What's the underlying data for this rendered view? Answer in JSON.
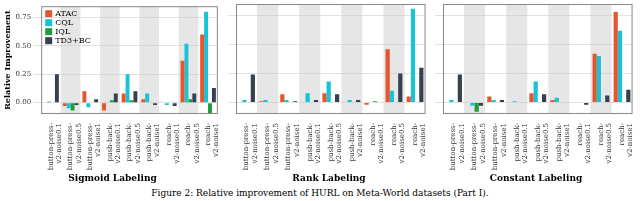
{
  "chart_data": [
    {
      "type": "bar",
      "title": "Sigmoid Labeling",
      "ylabel": "Relative Improvement",
      "categories": [
        "button-press-v2-noise0.1",
        "button-press-v2-noise0.5",
        "button-press-v2-noise1",
        "push-back-v2-noise0.1",
        "push-back-v2-noise0.5",
        "push-back-v2-noise1",
        "reach-v2-noise0.1",
        "reach-v2-noise0.5",
        "reach-v2-noise1"
      ],
      "series": [
        {
          "name": "ATAC",
          "color": "#e4572e",
          "values": [
            0.0,
            -0.03,
            0.1,
            -0.07,
            0.08,
            0.03,
            0.0,
            0.37,
            0.6
          ]
        },
        {
          "name": "CQL",
          "color": "#17c3d6",
          "values": [
            0.01,
            -0.05,
            -0.04,
            0.0,
            0.25,
            0.08,
            -0.02,
            0.52,
            0.8
          ]
        },
        {
          "name": "IQL",
          "color": "#1e9e3a",
          "values": [
            0.0,
            -0.07,
            0.0,
            0.02,
            0.02,
            0.0,
            0.0,
            0.03,
            -0.1
          ]
        },
        {
          "name": "TD3+BC",
          "color": "#37404f",
          "values": [
            0.25,
            -0.02,
            0.03,
            0.08,
            0.1,
            -0.02,
            -0.03,
            0.08,
            0.13
          ]
        }
      ],
      "ylim": [
        -0.1,
        0.85
      ],
      "yticks": [
        {
          "value": 0,
          "label": "0.00"
        },
        {
          "value": 0.25,
          "label": "0.25"
        },
        {
          "value": 0.5,
          "label": "0.50"
        },
        {
          "value": 0.75,
          "label": "0.75"
        }
      ],
      "grid": true,
      "legend": "top-left",
      "tick_labels": true
    },
    {
      "type": "bar",
      "title": "Rank Labeling",
      "categories": [
        "button-press-v2-noise0.1",
        "button-press-v2-noise0.5",
        "button-press-v2-noise1",
        "push-back-v2-noise0.1",
        "push-back-v2-noise0.5",
        "push-back-v2-noise1",
        "reach-v2-noise0.1",
        "reach-v2-noise0.5",
        "reach-v2-noise1"
      ],
      "series": [
        {
          "name": "ATAC",
          "color": "#e4572e",
          "values": [
            0.0,
            0.01,
            0.07,
            0.0,
            0.08,
            0.0,
            -0.02,
            0.46,
            0.05
          ]
        },
        {
          "name": "CQL",
          "color": "#17c3d6",
          "values": [
            0.02,
            0.02,
            0.02,
            0.08,
            0.18,
            0.02,
            0.0,
            0.1,
            0.81
          ]
        },
        {
          "name": "IQL",
          "color": "#1e9e3a",
          "values": [
            0.0,
            0.0,
            0.0,
            0.0,
            0.0,
            0.0,
            0.01,
            0.0,
            0.0
          ]
        },
        {
          "name": "TD3+BC",
          "color": "#37404f",
          "values": [
            0.24,
            0.0,
            0.01,
            0.02,
            0.07,
            0.02,
            0.0,
            0.25,
            0.3
          ]
        }
      ],
      "ylim": [
        -0.1,
        0.85
      ],
      "yticks": [
        {
          "value": 0,
          "label": "0.00"
        },
        {
          "value": 0.25,
          "label": "0.25"
        },
        {
          "value": 0.5,
          "label": "0.50"
        },
        {
          "value": 0.75,
          "label": "0.75"
        }
      ],
      "grid": true,
      "tick_labels": "x"
    },
    {
      "type": "bar",
      "title": "Constant Labeling",
      "categories": [
        "button-press-v2-noise0.1",
        "button-press-v2-noise0.5",
        "button-press-v2-noise1",
        "push-back-v2-noise0.1",
        "push-back-v2-noise0.5",
        "push-back-v2-noise1",
        "reach-v2-noise0.1",
        "reach-v2-noise0.5",
        "reach-v2-noise1"
      ],
      "series": [
        {
          "name": "ATAC",
          "color": "#e4572e",
          "values": [
            0.0,
            0.0,
            0.05,
            0.0,
            0.08,
            0.02,
            0.0,
            0.42,
            0.78
          ]
        },
        {
          "name": "CQL",
          "color": "#17c3d6",
          "values": [
            0.02,
            -0.03,
            0.02,
            0.01,
            0.18,
            0.04,
            0.0,
            0.4,
            0.62
          ]
        },
        {
          "name": "IQL",
          "color": "#1e9e3a",
          "values": [
            0.0,
            -0.08,
            0.0,
            0.0,
            0.0,
            0.0,
            0.0,
            0.0,
            0.0
          ]
        },
        {
          "name": "TD3+BC",
          "color": "#37404f",
          "values": [
            0.24,
            -0.03,
            0.02,
            0.0,
            0.07,
            0.0,
            -0.02,
            0.06,
            0.11
          ]
        }
      ],
      "ylim": [
        -0.1,
        0.85
      ],
      "yticks": [
        {
          "value": 0,
          "label": "0.00"
        },
        {
          "value": 0.25,
          "label": "0.25"
        },
        {
          "value": 0.5,
          "label": "0.50"
        },
        {
          "value": 0.75,
          "label": "0.75"
        }
      ],
      "grid": true,
      "tick_labels": "x"
    }
  ],
  "caption": "Figure 2: Relative improvement of HURL on Meta-World datasets (Part I)."
}
